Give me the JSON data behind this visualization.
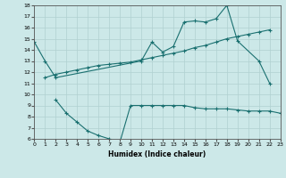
{
  "xlabel": "Humidex (Indice chaleur)",
  "bg_color": "#cce8e8",
  "line_color": "#1a7070",
  "grid_color": "#b0d0d0",
  "xlim": [
    0,
    23
  ],
  "ylim": [
    6,
    18
  ],
  "xticks": [
    0,
    1,
    2,
    3,
    4,
    5,
    6,
    7,
    8,
    9,
    10,
    11,
    12,
    13,
    14,
    15,
    16,
    17,
    18,
    19,
    20,
    21,
    22,
    23
  ],
  "yticks": [
    6,
    7,
    8,
    9,
    10,
    11,
    12,
    13,
    14,
    15,
    16,
    17,
    18
  ],
  "line1_x": [
    0,
    1,
    2,
    10,
    11,
    12,
    13,
    14,
    15,
    16,
    17,
    18,
    19,
    21,
    22
  ],
  "line1_y": [
    14.7,
    13.0,
    11.5,
    13.0,
    14.7,
    13.8,
    14.3,
    16.5,
    16.6,
    16.5,
    16.8,
    18.0,
    14.8,
    13.0,
    11.0
  ],
  "line2_x": [
    1,
    2,
    3,
    4,
    5,
    6,
    7,
    8,
    9,
    10,
    11,
    12,
    13,
    14,
    15,
    16,
    17,
    18,
    19,
    20,
    21,
    22
  ],
  "line2_y": [
    11.5,
    11.8,
    12.0,
    12.2,
    12.4,
    12.6,
    12.7,
    12.8,
    12.9,
    13.1,
    13.3,
    13.5,
    13.7,
    13.9,
    14.2,
    14.4,
    14.7,
    15.0,
    15.2,
    15.4,
    15.6,
    15.8
  ],
  "line3_x": [
    2,
    3,
    4,
    5,
    6,
    7,
    8,
    9,
    10,
    11,
    12,
    13,
    14,
    15,
    16,
    17,
    18,
    19,
    20,
    21,
    22,
    23
  ],
  "line3_y": [
    9.5,
    8.3,
    7.5,
    6.7,
    6.3,
    6.0,
    5.7,
    9.0,
    9.0,
    9.0,
    9.0,
    9.0,
    9.0,
    8.8,
    8.7,
    8.7,
    8.7,
    8.6,
    8.5,
    8.5,
    8.5,
    8.3
  ]
}
